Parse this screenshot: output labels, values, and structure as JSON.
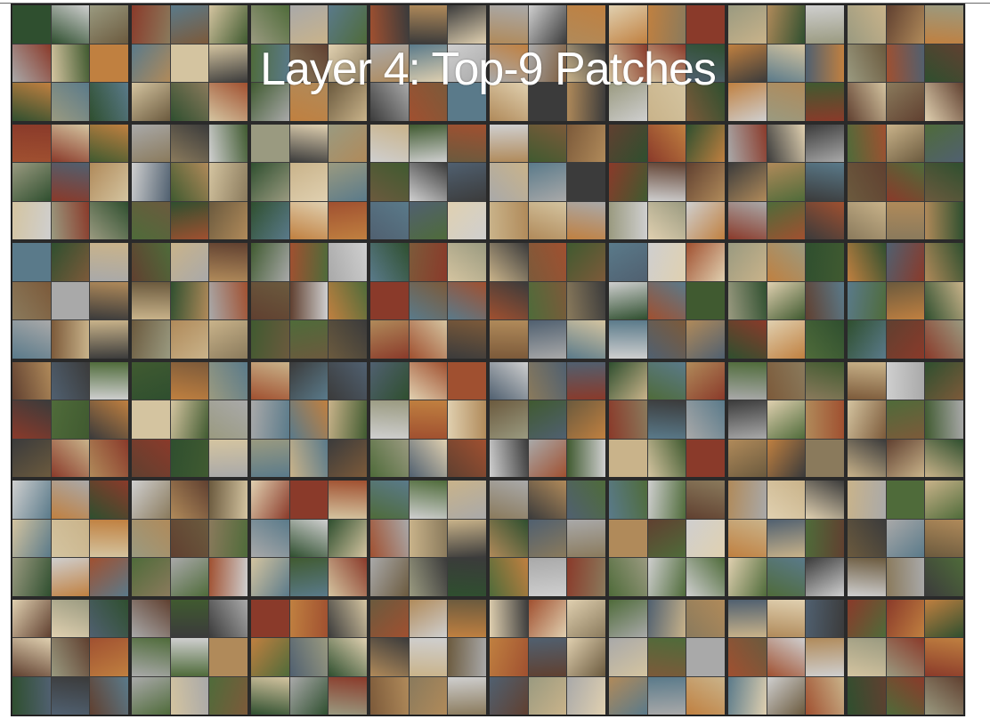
{
  "title": "Layer 4: Top-9 Patches",
  "grid": {
    "rows": 6,
    "columns": 8,
    "patches_per_cell": 9,
    "palette": [
      "#6b5a3e",
      "#8a7a5c",
      "#4f6b3a",
      "#b08a5a",
      "#a9a9a9",
      "#3b3b3b",
      "#c9b38a",
      "#7c5a3a",
      "#5a7a8a",
      "#d4c4a0",
      "#8a3a2a",
      "#2f4f2f",
      "#c08040",
      "#9a9a80",
      "#604030",
      "#e0d0b0",
      "#506070",
      "#a05030",
      "#405a30",
      "#cfcfcf"
    ]
  }
}
